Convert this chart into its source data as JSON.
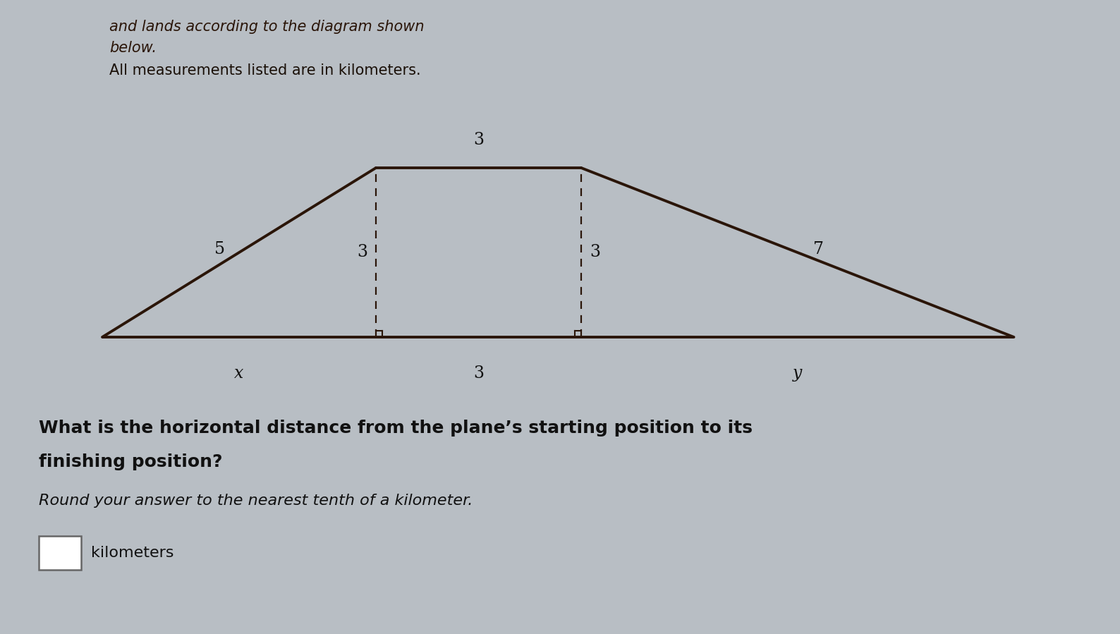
{
  "bg_color": "#b8bec4",
  "header_line1": "and lands according to the diagram shown",
  "header_line2": "below.",
  "sub_text": "All measurements listed are in kilometers.",
  "question_text": "What is the horizontal distance from the plane’s starting position to its\nfinishing position?",
  "round_text": "Round your answer to the nearest tenth of a kilometer.",
  "answer_label": "kilometers",
  "diagram": {
    "shape_color": "#2a1508",
    "dashed_color": "#2a1508",
    "left_slope_label": "5",
    "right_slope_label": "7",
    "top_label": "3",
    "left_height_label": "3",
    "right_height_label": "3",
    "bottom_mid_label": "3",
    "bottom_left_label": "x",
    "bottom_right_label": "y"
  }
}
